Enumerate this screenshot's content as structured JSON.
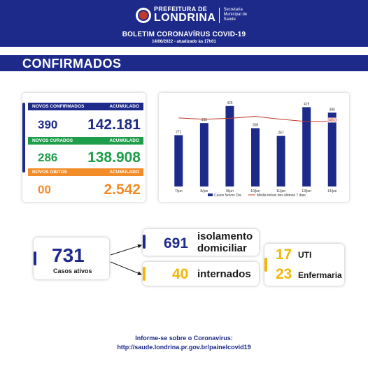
{
  "header": {
    "logo_top": "PREFEITURA DE",
    "logo_main": "LONDRINA",
    "logo_sub": "Secretaria Municipal de Saúde",
    "title": "BOLETIM CORONAVÍRUS COVID-19",
    "date": "14/06/2022 - atualizado às 17h01"
  },
  "banner": {
    "title": "CONFIRMADOS"
  },
  "stats": {
    "novos_confirmados": {
      "label": "NOVOS CONFIRMADOS",
      "acc_label": "ACUMULADO",
      "value": "390",
      "acc_value": "142.181"
    },
    "novos_curados": {
      "label": "NOVOS CURADOS",
      "acc_label": "ACUMULADO",
      "value": "286",
      "acc_value": "138.908"
    },
    "novos_obitos": {
      "label": "NOVOS OBITOS",
      "acc_label": "ACUMULADO",
      "value": "00",
      "acc_value": "2.542"
    }
  },
  "chart_data": {
    "type": "bar",
    "categories": [
      "7/jun",
      "8/jun",
      "9/jun",
      "10/jun",
      "11/jun",
      "13/jun",
      "14/jun"
    ],
    "series": [
      {
        "name": "Casos Novos Dia",
        "type": "bar",
        "values": [
          271,
          335,
          425,
          308,
          267,
          419,
          390
        ]
      },
      {
        "name": "Média móvel dos últimos 7 dias",
        "type": "line",
        "values": [
          362,
          355,
          360,
          370,
          355,
          343,
          345
        ]
      }
    ],
    "data_labels": [
      "271",
      "335",
      "425",
      "308",
      "267",
      "419",
      "390"
    ],
    "highlight_label": "345,0",
    "ylim": [
      0,
      450
    ],
    "legend_position": "bottom",
    "grid": false,
    "colors": {
      "bar": "#1d2a8a",
      "line": "#c0392b"
    }
  },
  "active": {
    "value": "731",
    "label": "Casos ativos",
    "isolamento_value": "691",
    "isolamento_label_1": "isolamento",
    "isolamento_label_2": "domiciliar",
    "internados_value": "40",
    "internados_label": "internados",
    "uti_value": "17",
    "uti_label": "UTI",
    "enfermaria_value": "23",
    "enfermaria_label": "Enfermaria"
  },
  "footer": {
    "line1": "Informe-se sobre o Coronavírus:",
    "line2": "http://saude.londrina.pr.gov.br/painelcovid19"
  },
  "colors": {
    "navy": "#1d2a8a",
    "green": "#1e9e4a",
    "orange": "#f28c28",
    "yellow": "#f2b705",
    "red": "#c0392b"
  }
}
